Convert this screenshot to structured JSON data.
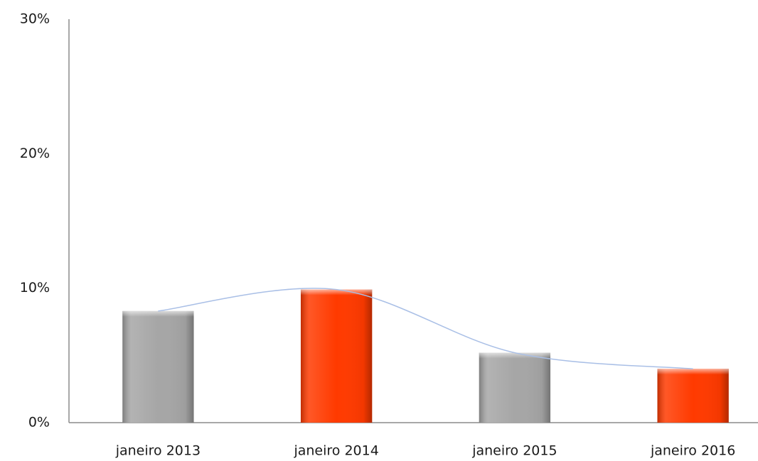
{
  "chart_data": {
    "type": "bar",
    "categories": [
      "janeiro  2013",
      "janeiro  2014",
      "janeiro  2015",
      "janeiro  2016"
    ],
    "values": [
      8.3,
      9.9,
      5.2,
      4.0
    ],
    "colors": [
      "#a6a6a6",
      "#ff3a00",
      "#a6a6a6",
      "#ff3a00"
    ],
    "trendline": {
      "color": "#a9bfe6"
    },
    "ylim": [
      0,
      30
    ],
    "yticks": [
      {
        "value": 0,
        "label": "0%"
      },
      {
        "value": 10,
        "label": "10%"
      },
      {
        "value": 20,
        "label": "20%"
      },
      {
        "value": 30,
        "label": "30%"
      }
    ],
    "grid": false
  }
}
